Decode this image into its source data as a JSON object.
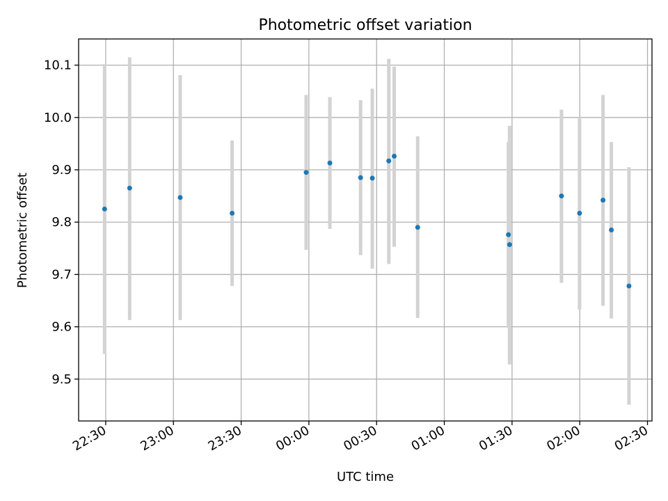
{
  "chart_data": {
    "type": "scatter",
    "title": "Photometric offset variation",
    "xlabel": "UTC time",
    "ylabel": "Photometric offset",
    "grid": true,
    "x_unit": "minutes",
    "xlim": [
      -6,
      248
    ],
    "ylim": [
      9.42,
      10.15
    ],
    "x_ticks": [
      {
        "value": 6,
        "label": "22:30"
      },
      {
        "value": 36,
        "label": "23:00"
      },
      {
        "value": 66,
        "label": "23:30"
      },
      {
        "value": 96,
        "label": "00:00"
      },
      {
        "value": 126,
        "label": "00:30"
      },
      {
        "value": 156,
        "label": "01:00"
      },
      {
        "value": 186,
        "label": "01:30"
      },
      {
        "value": 216,
        "label": "02:00"
      },
      {
        "value": 246,
        "label": "02:30"
      }
    ],
    "y_ticks": [
      {
        "value": 9.5,
        "label": "9.5"
      },
      {
        "value": 9.6,
        "label": "9.6"
      },
      {
        "value": 9.7,
        "label": "9.7"
      },
      {
        "value": 9.8,
        "label": "9.8"
      },
      {
        "value": 9.9,
        "label": "9.9"
      },
      {
        "value": 10.0,
        "label": "10.0"
      },
      {
        "value": 10.1,
        "label": "10.1"
      }
    ],
    "point_color": "#1f77b4",
    "errorbar_color": "#d3d3d3",
    "points": [
      {
        "x": 5.5,
        "y": 9.825,
        "ylow": 9.548,
        "yhigh": 10.102
      },
      {
        "x": 16.6,
        "y": 9.865,
        "ylow": 9.613,
        "yhigh": 10.115
      },
      {
        "x": 39.0,
        "y": 9.847,
        "ylow": 9.613,
        "yhigh": 10.081
      },
      {
        "x": 62.0,
        "y": 9.817,
        "ylow": 9.678,
        "yhigh": 9.956
      },
      {
        "x": 94.8,
        "y": 9.895,
        "ylow": 9.747,
        "yhigh": 10.043
      },
      {
        "x": 105.3,
        "y": 9.913,
        "ylow": 9.787,
        "yhigh": 10.039
      },
      {
        "x": 118.9,
        "y": 9.885,
        "ylow": 9.737,
        "yhigh": 10.033
      },
      {
        "x": 124.1,
        "y": 9.884,
        "ylow": 9.711,
        "yhigh": 10.055
      },
      {
        "x": 131.4,
        "y": 9.917,
        "ylow": 9.72,
        "yhigh": 10.112
      },
      {
        "x": 133.8,
        "y": 9.926,
        "ylow": 9.753,
        "yhigh": 10.097
      },
      {
        "x": 144.2,
        "y": 9.79,
        "ylow": 9.617,
        "yhigh": 9.964
      },
      {
        "x": 184.4,
        "y": 9.776,
        "ylow": 9.598,
        "yhigh": 9.953
      },
      {
        "x": 184.9,
        "y": 9.757,
        "ylow": 9.528,
        "yhigh": 9.984
      },
      {
        "x": 207.9,
        "y": 9.85,
        "ylow": 9.684,
        "yhigh": 10.015
      },
      {
        "x": 215.9,
        "y": 9.817,
        "ylow": 9.633,
        "yhigh": 10.0
      },
      {
        "x": 226.3,
        "y": 9.842,
        "ylow": 9.64,
        "yhigh": 10.043
      },
      {
        "x": 230.0,
        "y": 9.785,
        "ylow": 9.616,
        "yhigh": 9.953
      },
      {
        "x": 237.8,
        "y": 9.678,
        "ylow": 9.451,
        "yhigh": 9.905
      }
    ]
  }
}
